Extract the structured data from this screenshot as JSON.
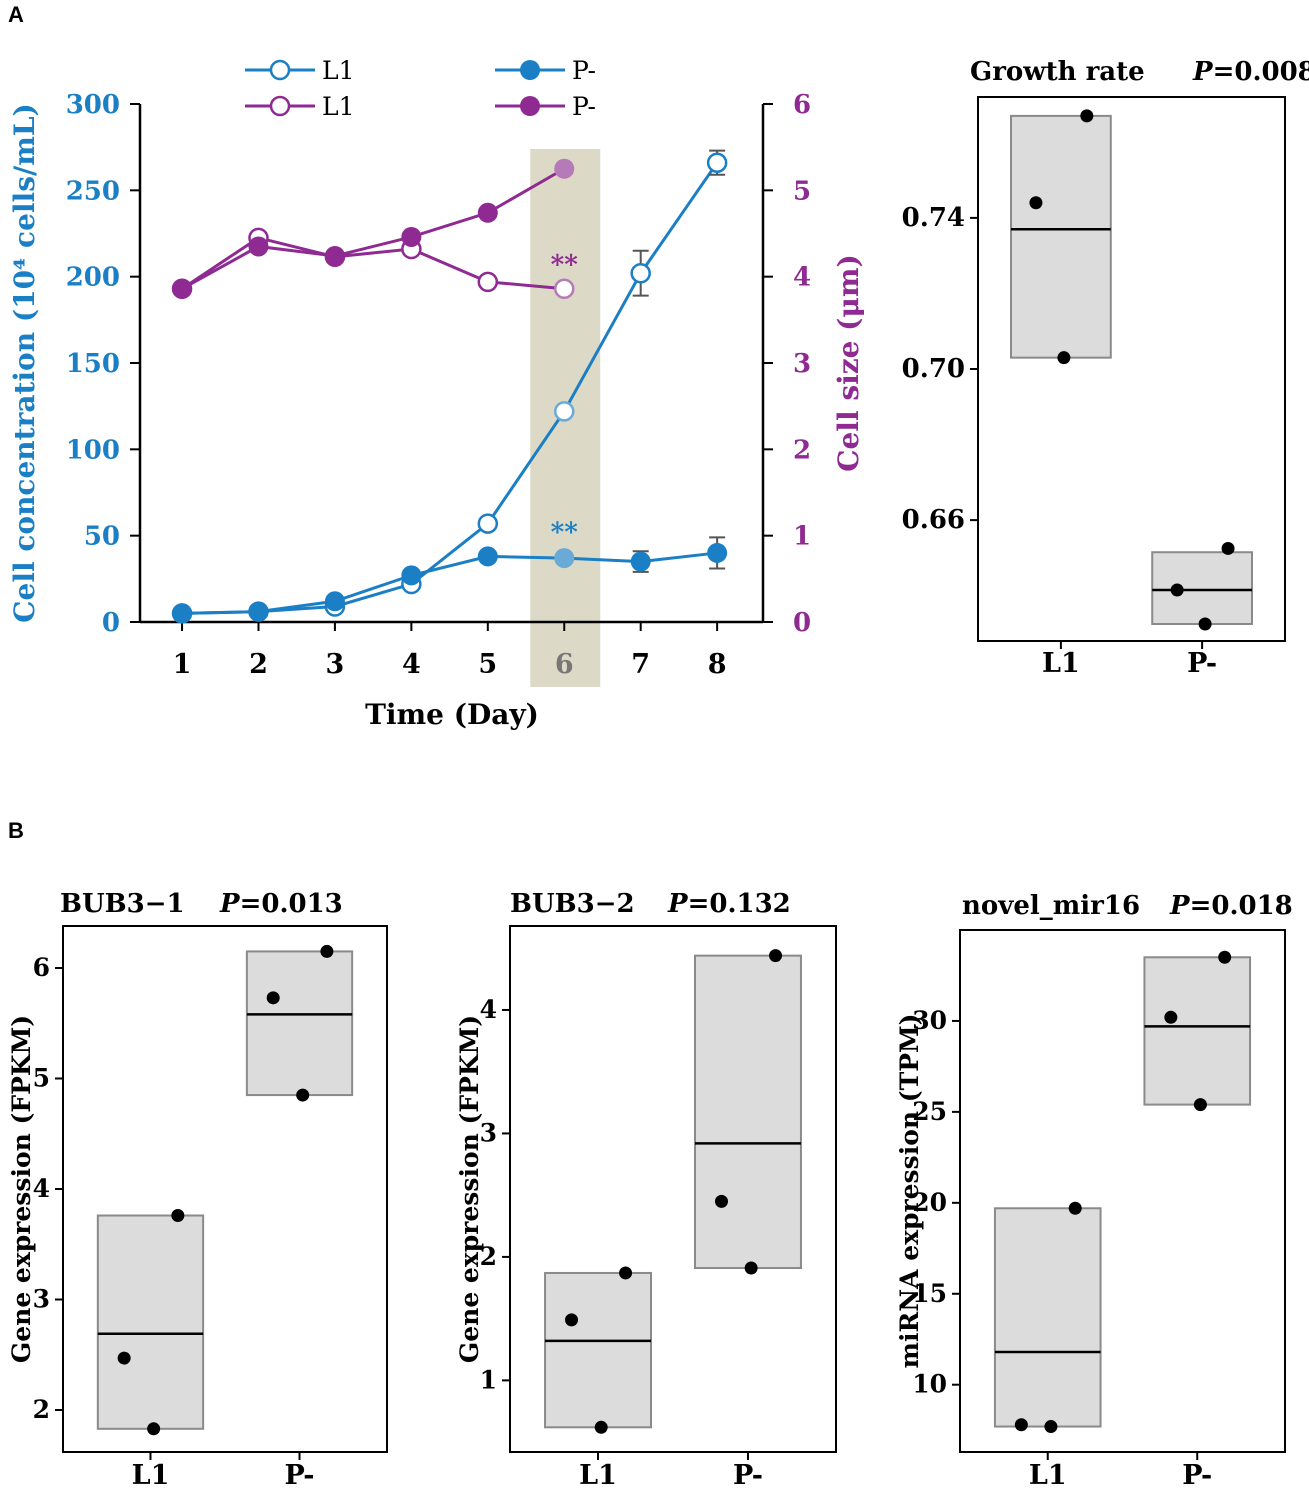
{
  "panel_labels": [
    "A",
    "B"
  ],
  "colors": {
    "blue": "#1a7fc4",
    "blue_light": "#6aaad6",
    "purple": "#8e2a92",
    "purple_light": "#b77ab9",
    "highlight": "#ddd9c7",
    "box_fill": "#dcdcdc",
    "box_stroke": "#8a8a8a",
    "dot": "#000000"
  },
  "chart_data": [
    {
      "id": "A-growth",
      "type": "line",
      "xlabel": "Time (Day)",
      "ylabel_left": "Cell concentration (10⁴ cells/mL)",
      "ylabel_right": "Cell size (μm)",
      "x": [
        1,
        2,
        3,
        4,
        5,
        6,
        7,
        8
      ],
      "x_ticks": [
        "1",
        "2",
        "3",
        "4",
        "5",
        "6",
        "7",
        "8"
      ],
      "xlim": [
        0.45,
        8.6
      ],
      "ylim_left": [
        0,
        300
      ],
      "yticks_left": [
        "0",
        "50",
        "100",
        "150",
        "200",
        "250",
        "300"
      ],
      "ylim_right": [
        0,
        6
      ],
      "yticks_right": [
        "0",
        "1",
        "2",
        "3",
        "4",
        "5",
        "6"
      ],
      "highlight_day": 6,
      "highlight_tick_color": "#777777",
      "legend": [
        {
          "label": "L1",
          "color": "#1a7fc4",
          "marker": "open"
        },
        {
          "label": "P-",
          "color": "#1a7fc4",
          "marker": "filled"
        },
        {
          "label": "L1",
          "color": "#8e2a92",
          "marker": "open"
        },
        {
          "label": "P-",
          "color": "#8e2a92",
          "marker": "filled"
        }
      ],
      "series": [
        {
          "name": "L1 cell concentration",
          "axis": "left",
          "color": "#1a7fc4",
          "marker": "open",
          "x": [
            1,
            2,
            3,
            4,
            5,
            6,
            7,
            8
          ],
          "values": [
            5,
            6,
            9,
            22,
            57,
            122,
            202,
            266
          ],
          "errors": [
            0,
            0,
            0,
            0,
            0,
            0,
            13,
            7
          ]
        },
        {
          "name": "P- cell concentration",
          "axis": "left",
          "color": "#1a7fc4",
          "marker": "filled",
          "x": [
            1,
            2,
            3,
            4,
            5,
            6,
            7,
            8
          ],
          "values": [
            5,
            6,
            12,
            27,
            38,
            37,
            35,
            40
          ],
          "errors": [
            0,
            0,
            0,
            0,
            0,
            0,
            6,
            9
          ]
        },
        {
          "name": "L1 cell size",
          "axis": "right",
          "color": "#8e2a92",
          "marker": "open",
          "x": [
            1,
            2,
            3,
            4,
            5,
            6
          ],
          "values": [
            3.86,
            4.45,
            4.23,
            4.32,
            3.94,
            3.86
          ],
          "errors": [
            0,
            0,
            0,
            0,
            0,
            0
          ]
        },
        {
          "name": "P- cell size",
          "axis": "right",
          "color": "#8e2a92",
          "marker": "filled",
          "x": [
            1,
            2,
            3,
            4,
            5,
            6
          ],
          "values": [
            3.86,
            4.35,
            4.24,
            4.46,
            4.74,
            5.25
          ],
          "errors": [
            0,
            0,
            0,
            0,
            0,
            0
          ]
        }
      ],
      "annotations": [
        {
          "text": "**",
          "x": 6,
          "y": 55,
          "axis": "left",
          "color": "#1a7fc4"
        },
        {
          "text": "**",
          "x": 6,
          "y": 4.2,
          "axis": "right",
          "color": "#8e2a92"
        }
      ]
    },
    {
      "id": "A-rate",
      "type": "box",
      "title": "Growth rate",
      "p_label": "P",
      "p_value": "=0.008",
      "ylabel": "",
      "categories": [
        "L1",
        "P-"
      ],
      "ylim": [
        0.628,
        0.772
      ],
      "yticks": [
        0.66,
        0.7,
        0.74
      ],
      "ytick_labels": [
        "0.66",
        "0.70",
        "0.74"
      ],
      "boxes": [
        {
          "category": "L1",
          "lower": 0.703,
          "median": 0.737,
          "upper": 0.767,
          "points": [
            0.744,
            0.767,
            0.703
          ]
        },
        {
          "category": "P-",
          "lower": 0.6325,
          "median": 0.6415,
          "upper": 0.6515,
          "points": [
            0.6415,
            0.6525,
            0.6325
          ]
        }
      ]
    },
    {
      "id": "B-bub31",
      "type": "box",
      "title": "BUB3−1",
      "p_label": "P",
      "p_value": "=0.013",
      "ylabel": "Gene expression (FPKM)",
      "categories": [
        "L1",
        "P-"
      ],
      "ylim": [
        1.62,
        6.38
      ],
      "yticks": [
        2,
        3,
        4,
        5,
        6
      ],
      "ytick_labels": [
        "2",
        "3",
        "4",
        "5",
        "6"
      ],
      "boxes": [
        {
          "category": "L1",
          "lower": 1.83,
          "median": 2.69,
          "upper": 3.76,
          "points": [
            2.47,
            3.76,
            1.83
          ]
        },
        {
          "category": "P-",
          "lower": 4.85,
          "median": 5.58,
          "upper": 6.15,
          "points": [
            5.73,
            6.15,
            4.85
          ]
        }
      ]
    },
    {
      "id": "B-bub32",
      "type": "box",
      "title": "BUB3−2",
      "p_label": "P",
      "p_value": "=0.132",
      "ylabel": "Gene expression (FPKM)",
      "categories": [
        "L1",
        "P-"
      ],
      "ylim": [
        0.42,
        4.68
      ],
      "yticks": [
        1,
        2,
        3,
        4
      ],
      "ytick_labels": [
        "1",
        "2",
        "3",
        "4"
      ],
      "boxes": [
        {
          "category": "L1",
          "lower": 0.62,
          "median": 1.32,
          "upper": 1.87,
          "points": [
            1.49,
            1.87,
            0.62
          ]
        },
        {
          "category": "P-",
          "lower": 1.91,
          "median": 2.92,
          "upper": 4.44,
          "points": [
            2.45,
            4.44,
            1.91
          ]
        }
      ]
    },
    {
      "id": "B-mir16",
      "type": "box",
      "title": "novel_mir16",
      "p_label": "P",
      "p_value": "=0.018",
      "ylabel": "miRNA expression (TPM)",
      "categories": [
        "L1",
        "P-"
      ],
      "ylim": [
        6.3,
        35.0
      ],
      "yticks": [
        10,
        15,
        20,
        25,
        30
      ],
      "ytick_labels": [
        "10",
        "15",
        "20",
        "25",
        "30"
      ],
      "boxes": [
        {
          "category": "L1",
          "lower": 7.7,
          "median": 11.8,
          "upper": 19.7,
          "points": [
            7.8,
            19.7,
            7.7
          ]
        },
        {
          "category": "P-",
          "lower": 25.4,
          "median": 29.7,
          "upper": 33.5,
          "points": [
            30.2,
            33.5,
            25.4
          ]
        }
      ]
    }
  ]
}
